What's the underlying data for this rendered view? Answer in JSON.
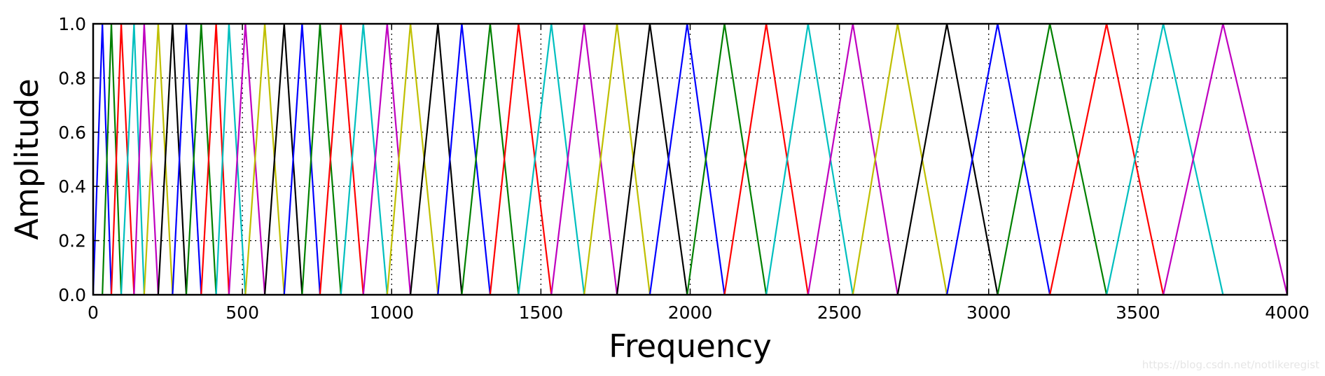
{
  "chart_data": {
    "type": "line",
    "title": "",
    "xlabel": "Frequency",
    "ylabel": "Amplitude",
    "xlim": [
      0,
      4000
    ],
    "ylim": [
      0.0,
      1.0
    ],
    "xticks": [
      0,
      500,
      1000,
      1500,
      2000,
      2500,
      3000,
      3500,
      4000
    ],
    "yticks": [
      "0.0",
      "0.2",
      "0.4",
      "0.6",
      "0.8",
      "1.0"
    ],
    "grid": true,
    "grid_style": "dotted",
    "legend": "none",
    "series_colors": [
      "#0000ff",
      "#008000",
      "#ff0000",
      "#00bfbf",
      "#bf00bf",
      "#bfbf00",
      "#000000"
    ],
    "filter_points_hz": [
      0,
      31,
      61,
      94,
      137,
      171,
      218,
      266,
      312,
      362,
      412,
      455,
      510,
      575,
      640,
      700,
      760,
      830,
      905,
      985,
      1063,
      1155,
      1235,
      1330,
      1425,
      1535,
      1645,
      1755,
      1865,
      1990,
      2115,
      2255,
      2395,
      2545,
      2695,
      2860,
      3030,
      3205,
      3395,
      3585,
      3785,
      4000
    ],
    "series": [
      {
        "color": "#0000ff",
        "x": [
          0,
          31,
          61
        ]
      },
      {
        "color": "#008000",
        "x": [
          31,
          61,
          94
        ]
      },
      {
        "color": "#ff0000",
        "x": [
          61,
          94,
          137
        ]
      },
      {
        "color": "#00bfbf",
        "x": [
          94,
          137,
          171
        ]
      },
      {
        "color": "#bf00bf",
        "x": [
          137,
          171,
          218
        ]
      },
      {
        "color": "#bfbf00",
        "x": [
          171,
          218,
          266
        ]
      },
      {
        "color": "#000000",
        "x": [
          218,
          266,
          312
        ]
      },
      {
        "color": "#0000ff",
        "x": [
          266,
          312,
          362
        ]
      },
      {
        "color": "#008000",
        "x": [
          312,
          362,
          412
        ]
      },
      {
        "color": "#ff0000",
        "x": [
          362,
          412,
          455
        ]
      },
      {
        "color": "#00bfbf",
        "x": [
          412,
          455,
          510
        ]
      },
      {
        "color": "#bf00bf",
        "x": [
          455,
          510,
          575
        ]
      },
      {
        "color": "#bfbf00",
        "x": [
          510,
          575,
          640
        ]
      },
      {
        "color": "#000000",
        "x": [
          575,
          640,
          700
        ]
      },
      {
        "color": "#0000ff",
        "x": [
          640,
          700,
          760
        ]
      },
      {
        "color": "#008000",
        "x": [
          700,
          760,
          830
        ]
      },
      {
        "color": "#ff0000",
        "x": [
          760,
          830,
          905
        ]
      },
      {
        "color": "#00bfbf",
        "x": [
          830,
          905,
          985
        ]
      },
      {
        "color": "#bf00bf",
        "x": [
          905,
          985,
          1063
        ]
      },
      {
        "color": "#bfbf00",
        "x": [
          985,
          1063,
          1155
        ]
      },
      {
        "color": "#000000",
        "x": [
          1063,
          1155,
          1235
        ]
      },
      {
        "color": "#0000ff",
        "x": [
          1155,
          1235,
          1330
        ]
      },
      {
        "color": "#008000",
        "x": [
          1235,
          1330,
          1425
        ]
      },
      {
        "color": "#ff0000",
        "x": [
          1330,
          1425,
          1535
        ]
      },
      {
        "color": "#00bfbf",
        "x": [
          1425,
          1535,
          1645
        ]
      },
      {
        "color": "#bf00bf",
        "x": [
          1535,
          1645,
          1755
        ]
      },
      {
        "color": "#bfbf00",
        "x": [
          1645,
          1755,
          1865
        ]
      },
      {
        "color": "#000000",
        "x": [
          1755,
          1865,
          1990
        ]
      },
      {
        "color": "#0000ff",
        "x": [
          1865,
          1990,
          2115
        ]
      },
      {
        "color": "#008000",
        "x": [
          1990,
          2115,
          2255
        ]
      },
      {
        "color": "#ff0000",
        "x": [
          2115,
          2255,
          2395
        ]
      },
      {
        "color": "#00bfbf",
        "x": [
          2255,
          2395,
          2545
        ]
      },
      {
        "color": "#bf00bf",
        "x": [
          2395,
          2545,
          2695
        ]
      },
      {
        "color": "#bfbf00",
        "x": [
          2545,
          2695,
          2860
        ]
      },
      {
        "color": "#000000",
        "x": [
          2695,
          2860,
          3030
        ]
      },
      {
        "color": "#0000ff",
        "x": [
          2860,
          3030,
          3205
        ]
      },
      {
        "color": "#008000",
        "x": [
          3030,
          3205,
          3395
        ]
      },
      {
        "color": "#ff0000",
        "x": [
          3205,
          3395,
          3585
        ]
      },
      {
        "color": "#00bfbf",
        "x": [
          3395,
          3585,
          3785
        ]
      },
      {
        "color": "#bf00bf",
        "x": [
          3585,
          3785,
          4000
        ]
      }
    ],
    "annotations": []
  },
  "watermark": "https://blog.csdn.net/notlikeregist"
}
